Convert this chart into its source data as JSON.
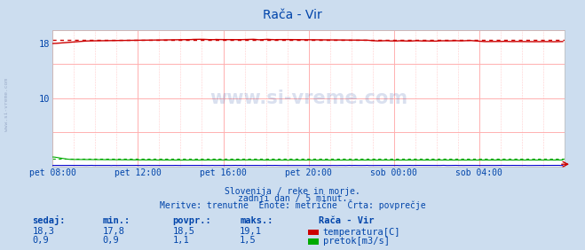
{
  "title": "Rača - Vir",
  "bg_color": "#ccddef",
  "plot_bg_color": "#ffffff",
  "grid_color_major": "#ffb0b0",
  "grid_color_minor": "#ffcccc",
  "text_color": "#0044aa",
  "watermark": "www.si-vreme.com",
  "xlabel_ticks": [
    "pet 08:00",
    "pet 12:00",
    "pet 16:00",
    "pet 20:00",
    "sob 00:00",
    "sob 04:00"
  ],
  "ylim": [
    0,
    20
  ],
  "xlim": [
    0,
    288
  ],
  "temp_color": "#cc0000",
  "flow_color": "#00aa00",
  "height_color": "#0000cc",
  "subtitle1": "Slovenija / reke in morje.",
  "subtitle2": "zadnji dan / 5 minut.",
  "subtitle3": "Meritve: trenutne  Enote: metrične  Črta: povprečje",
  "legend_title": "Rača - Vir",
  "legend_label1": "temperatura[C]",
  "legend_label2": "pretok[m3/s]",
  "table_headers": [
    "sedaj:",
    "min.:",
    "povpr.:",
    "maks.:"
  ],
  "table_row1": [
    "18,3",
    "17,8",
    "18,5",
    "19,1"
  ],
  "table_row2": [
    "0,9",
    "0,9",
    "1,1",
    "1,5"
  ],
  "temp_avg": 18.5,
  "flow_avg": 1.1,
  "figwidth": 6.59,
  "figheight": 2.82
}
